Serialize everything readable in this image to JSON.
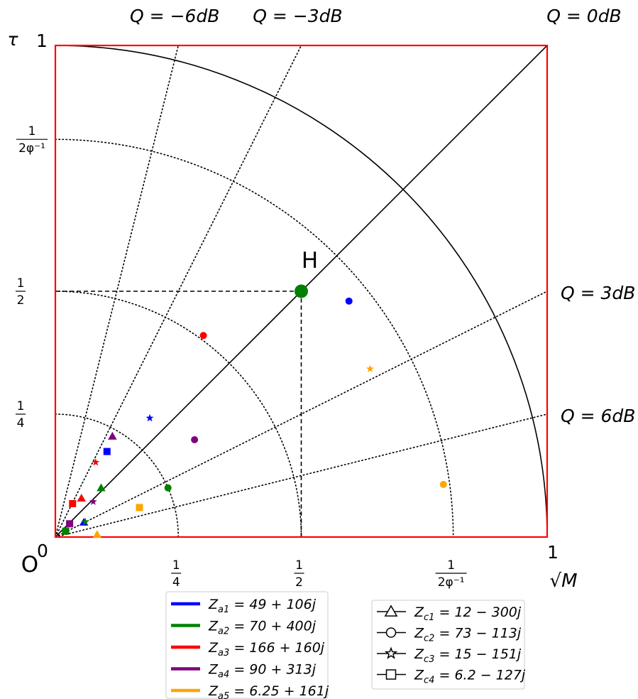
{
  "chart_data": {
    "type": "scatter",
    "title": "",
    "xlabel": "√M",
    "ylabel": "τ",
    "xlim": [
      0,
      1
    ],
    "ylim": [
      0,
      1
    ],
    "grid": false,
    "frame_color": "#ff0000",
    "origin_label": "O",
    "corner_labels": {
      "x_zero": "0",
      "y_one": "1",
      "x_one": "1"
    },
    "x_ticks": [
      {
        "value": 0.25,
        "num": "1",
        "den": "4"
      },
      {
        "value": 0.5,
        "num": "1",
        "den": "2"
      },
      {
        "value": 0.809,
        "num": "1",
        "den": "2φ⁻¹"
      }
    ],
    "y_ticks": [
      {
        "value": 0.25,
        "num": "1",
        "den": "4"
      },
      {
        "value": 0.5,
        "num": "1",
        "den": "2"
      },
      {
        "value": 0.809,
        "num": "1",
        "den": "2φ⁻¹"
      }
    ],
    "q_lines": [
      {
        "label": "Q = −6dB",
        "slope": 4.0,
        "place": "top"
      },
      {
        "label": "Q = −3dB",
        "slope": 2.0,
        "place": "top"
      },
      {
        "label": "Q = 0dB",
        "slope": 1.0,
        "place": "top"
      },
      {
        "label": "Q = 3dB",
        "slope": 0.5,
        "place": "right"
      },
      {
        "label": "Q = 6dB",
        "slope": 0.25,
        "place": "right"
      }
    ],
    "dotted_arcs": [
      0.25,
      0.5,
      0.809
    ],
    "solid_arc": 1.0,
    "point_H": {
      "label": "H",
      "x": 0.5,
      "y": 0.5,
      "color": "#008000"
    },
    "series": [
      {
        "name": "Z_a1 = 49 + 106j",
        "label_main": "Z",
        "label_sub": "a1",
        "label_eq": " = 49 + 106j",
        "color": "#0000ff",
        "points": [
          {
            "marker": "triangle",
            "x": 0.058,
            "y": 0.03
          },
          {
            "marker": "circle",
            "x": 0.597,
            "y": 0.48
          },
          {
            "marker": "star",
            "x": 0.192,
            "y": 0.242
          },
          {
            "marker": "square",
            "x": 0.105,
            "y": 0.174
          }
        ]
      },
      {
        "name": "Z_a2 = 70 + 400j",
        "label_main": "Z",
        "label_sub": "a2",
        "label_eq": " = 70 + 400j",
        "color": "#008000",
        "points": [
          {
            "marker": "triangle",
            "x": 0.093,
            "y": 0.1
          },
          {
            "marker": "circle",
            "x": 0.229,
            "y": 0.1
          },
          {
            "marker": "star",
            "x": 0.061,
            "y": 0.031
          },
          {
            "marker": "square",
            "x": 0.021,
            "y": 0.012
          }
        ]
      },
      {
        "name": "Z_a3 = 166 + 160j",
        "label_main": "Z",
        "label_sub": "a3",
        "label_eq": " = 166 + 160j",
        "color": "#ff0000",
        "points": [
          {
            "marker": "triangle",
            "x": 0.053,
            "y": 0.079
          },
          {
            "marker": "circle",
            "x": 0.301,
            "y": 0.41
          },
          {
            "marker": "star",
            "x": 0.082,
            "y": 0.152
          },
          {
            "marker": "square",
            "x": 0.035,
            "y": 0.068
          }
        ]
      },
      {
        "name": "Z_a4 = 90 + 313j",
        "label_main": "Z",
        "label_sub": "a4",
        "label_eq": " = 90 + 313j",
        "color": "#800080",
        "points": [
          {
            "marker": "triangle",
            "x": 0.116,
            "y": 0.205
          },
          {
            "marker": "circle",
            "x": 0.283,
            "y": 0.198
          },
          {
            "marker": "star",
            "x": 0.077,
            "y": 0.072
          },
          {
            "marker": "square",
            "x": 0.029,
            "y": 0.027
          }
        ]
      },
      {
        "name": "Z_a5 = 6.25 + 161j",
        "label_main": "Z",
        "label_sub": "a5",
        "label_eq": " = 6.25 + 161j",
        "color": "#ffa500",
        "points": [
          {
            "marker": "triangle",
            "x": 0.085,
            "y": 0.005
          },
          {
            "marker": "circle",
            "x": 0.789,
            "y": 0.107
          },
          {
            "marker": "star",
            "x": 0.64,
            "y": 0.342
          },
          {
            "marker": "square",
            "x": 0.171,
            "y": 0.06
          }
        ]
      }
    ],
    "marker_legend": [
      {
        "marker": "triangle",
        "label_main": "Z",
        "label_sub": "c1",
        "label_eq": " = 12 − 300j"
      },
      {
        "marker": "circle",
        "label_main": "Z",
        "label_sub": "c2",
        "label_eq": " = 73 − 113j"
      },
      {
        "marker": "star",
        "label_main": "Z",
        "label_sub": "c3",
        "label_eq": " = 15 − 151j"
      },
      {
        "marker": "square",
        "label_main": "Z",
        "label_sub": "c4",
        "label_eq": " = 6.2 − 127j"
      }
    ],
    "legend_placement": "bottom"
  }
}
